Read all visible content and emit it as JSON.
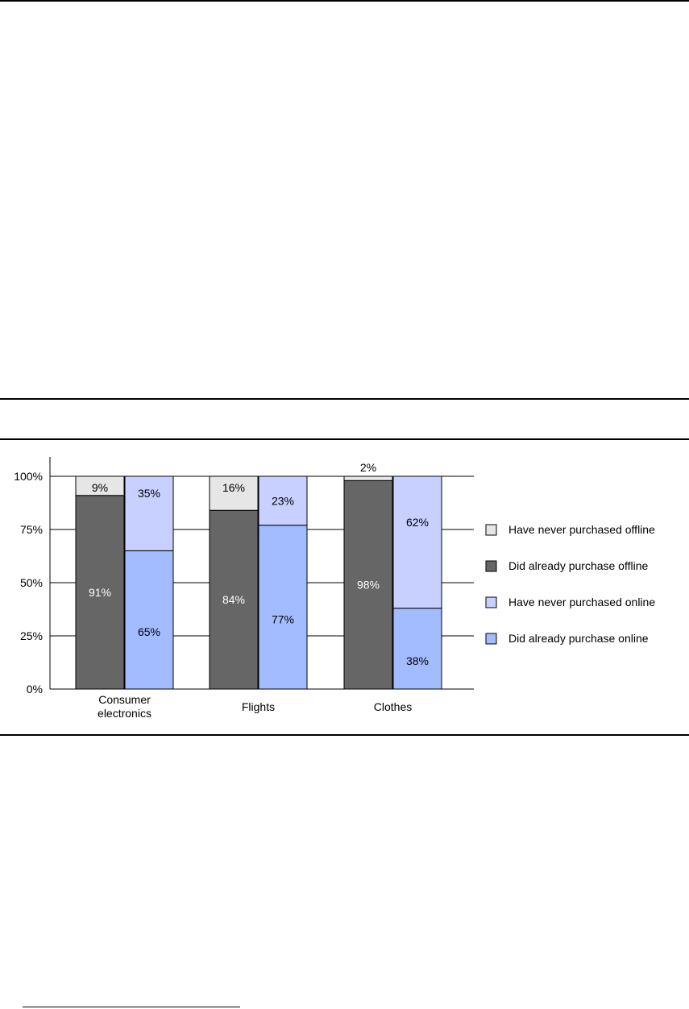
{
  "colors": {
    "never_offline": "#e6e6e6",
    "already_offline": "#666666",
    "never_online": "#c8d0ff",
    "already_online": "#a3bcff",
    "grid": "#000000"
  },
  "chart_data": {
    "type": "bar",
    "stacked": true,
    "categories": [
      "Consumer electronics",
      "Flights",
      "Clothes"
    ],
    "category_label_lines": [
      [
        "Consumer",
        "electronics"
      ],
      [
        "Flights"
      ],
      [
        "Clothes"
      ]
    ],
    "bars": [
      {
        "category": 0,
        "kind": "offline",
        "segments": [
          {
            "series": "Did already purchase offline",
            "value": 91,
            "label": "91%"
          },
          {
            "series": "Have never purchased offline",
            "value": 9,
            "label": "9%"
          }
        ]
      },
      {
        "category": 0,
        "kind": "online",
        "segments": [
          {
            "series": "Did already purchase online",
            "value": 65,
            "label": "65%"
          },
          {
            "series": "Have never purchased online",
            "value": 35,
            "label": "35%"
          }
        ]
      },
      {
        "category": 1,
        "kind": "offline",
        "segments": [
          {
            "series": "Did already purchase offline",
            "value": 84,
            "label": "84%"
          },
          {
            "series": "Have never purchased offline",
            "value": 16,
            "label": "16%"
          }
        ]
      },
      {
        "category": 1,
        "kind": "online",
        "segments": [
          {
            "series": "Did already purchase online",
            "value": 77,
            "label": "77%"
          },
          {
            "series": "Have never purchased online",
            "value": 23,
            "label": "23%"
          }
        ]
      },
      {
        "category": 2,
        "kind": "offline",
        "segments": [
          {
            "series": "Did already purchase offline",
            "value": 98,
            "label": "98%"
          },
          {
            "series": "Have never purchased offline",
            "value": 2,
            "label": "2%"
          }
        ]
      },
      {
        "category": 2,
        "kind": "online",
        "segments": [
          {
            "series": "Did already purchase online",
            "value": 38,
            "label": "38%"
          },
          {
            "series": "Have never purchased online",
            "value": 62,
            "label": "62%"
          }
        ]
      }
    ],
    "legend": [
      {
        "name": "Have never purchased offline",
        "color": "#e6e6e6"
      },
      {
        "name": "Did already purchase offline",
        "color": "#666666"
      },
      {
        "name": "Have never purchased online",
        "color": "#c8d0ff"
      },
      {
        "name": "Did already purchase online",
        "color": "#a3bcff"
      }
    ],
    "legend_position": "right",
    "y_ticks": [
      {
        "value": 0,
        "label": "0%"
      },
      {
        "value": 25,
        "label": "25%"
      },
      {
        "value": 50,
        "label": "50%"
      },
      {
        "value": 75,
        "label": "75%"
      },
      {
        "value": 100,
        "label": "100%"
      }
    ],
    "ylim": [
      0,
      100
    ],
    "grid": true
  }
}
